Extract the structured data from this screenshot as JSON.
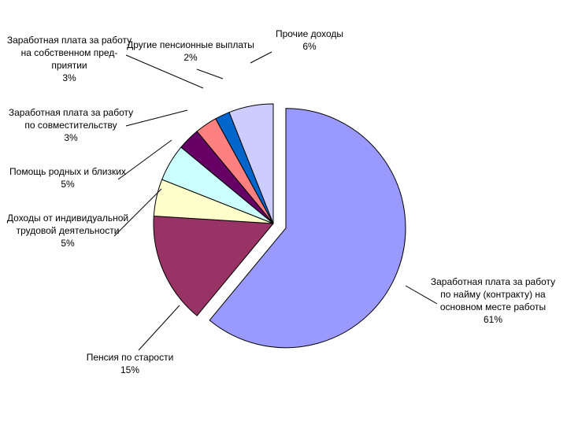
{
  "chart_data": {
    "type": "pie",
    "title": "",
    "series": [
      {
        "values": [
          61,
          15,
          5,
          5,
          3,
          3,
          2,
          6
        ],
        "slices": [
          {
            "value": 61,
            "label_lines": [
              "Заработная плата за работу",
              "по найму (контракту) на",
              "основном месте работы"
            ],
            "pct": "61%",
            "color": "#9999ff"
          },
          {
            "value": 15,
            "label_lines": [
              "Пенсия по старости"
            ],
            "pct": "15%",
            "color": "#993366"
          },
          {
            "value": 5,
            "label_lines": [
              "Доходы от индивидуальной",
              "трудовой деятельности"
            ],
            "pct": "5%",
            "color": "#ffffcc"
          },
          {
            "value": 5,
            "label_lines": [
              "Помощь родных и близких"
            ],
            "pct": "5%",
            "color": "#ccffff"
          },
          {
            "value": 3,
            "label_lines": [
              "Заработная плата за работу",
              "по совместительству"
            ],
            "pct": "3%",
            "color": "#660066"
          },
          {
            "value": 3,
            "label_lines": [
              "Заработная плата за работу",
              "на собственном пред-",
              "приятии"
            ],
            "pct": "3%",
            "color": "#ff8080"
          },
          {
            "value": 2,
            "label_lines": [
              "Другие пенсионные выплаты"
            ],
            "pct": "2%",
            "color": "#0066cc"
          },
          {
            "value": 6,
            "label_lines": [
              "Прочие доходы"
            ],
            "pct": "6%",
            "color": "#ccccff"
          }
        ]
      }
    ],
    "legend": "none",
    "exploded_slice": 0
  }
}
